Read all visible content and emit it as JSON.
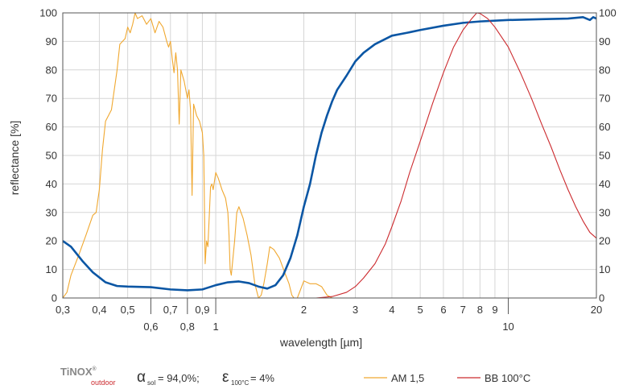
{
  "chart_data": {
    "type": "line",
    "title": "",
    "xlabel": "wavelength [µm]",
    "ylabel": "reflectance [%]",
    "x_scale": "log",
    "xlim": [
      0.3,
      20
    ],
    "ylim": [
      0,
      100
    ],
    "grid": true,
    "y_ticks": [
      "0",
      "10",
      "20",
      "30",
      "40",
      "50",
      "60",
      "70",
      "80",
      "90",
      "100"
    ],
    "x_ticks_major": [
      {
        "value": 0.3,
        "label": "0,3"
      },
      {
        "value": 0.4,
        "label": "0,4"
      },
      {
        "value": 0.5,
        "label": "0,5"
      },
      {
        "value": 0.7,
        "label": "0,7"
      },
      {
        "value": 0.9,
        "label": "0,9"
      },
      {
        "value": 2,
        "label": "2"
      },
      {
        "value": 3,
        "label": "3"
      },
      {
        "value": 4,
        "label": "4"
      },
      {
        "value": 5,
        "label": "5"
      },
      {
        "value": 6,
        "label": "6"
      },
      {
        "value": 7,
        "label": "7"
      },
      {
        "value": 8,
        "label": "8"
      },
      {
        "value": 9,
        "label": "9"
      },
      {
        "value": 20,
        "label": "20"
      }
    ],
    "x_ticks_lower": [
      {
        "value": 0.6,
        "label": "0,6"
      },
      {
        "value": 0.8,
        "label": "0,8"
      },
      {
        "value": 1,
        "label": "1"
      },
      {
        "value": 10,
        "label": "10"
      }
    ],
    "series": [
      {
        "name": "AM 1,5",
        "color": "#f0a830",
        "points": [
          [
            0.3,
            0
          ],
          [
            0.31,
            2
          ],
          [
            0.32,
            8
          ],
          [
            0.34,
            15
          ],
          [
            0.36,
            22
          ],
          [
            0.38,
            29
          ],
          [
            0.39,
            30
          ],
          [
            0.4,
            38
          ],
          [
            0.41,
            52
          ],
          [
            0.42,
            62
          ],
          [
            0.44,
            66
          ],
          [
            0.46,
            80
          ],
          [
            0.47,
            89
          ],
          [
            0.49,
            91
          ],
          [
            0.5,
            95
          ],
          [
            0.51,
            93
          ],
          [
            0.52,
            96
          ],
          [
            0.53,
            100
          ],
          [
            0.54,
            98
          ],
          [
            0.56,
            99
          ],
          [
            0.58,
            96
          ],
          [
            0.6,
            98
          ],
          [
            0.62,
            93
          ],
          [
            0.64,
            97
          ],
          [
            0.66,
            95
          ],
          [
            0.68,
            90
          ],
          [
            0.69,
            88
          ],
          [
            0.7,
            90
          ],
          [
            0.71,
            84
          ],
          [
            0.72,
            79
          ],
          [
            0.73,
            86
          ],
          [
            0.74,
            80
          ],
          [
            0.75,
            61
          ],
          [
            0.76,
            80
          ],
          [
            0.78,
            76
          ],
          [
            0.8,
            70
          ],
          [
            0.81,
            73
          ],
          [
            0.82,
            66
          ],
          [
            0.83,
            36
          ],
          [
            0.84,
            68
          ],
          [
            0.86,
            64
          ],
          [
            0.88,
            62
          ],
          [
            0.9,
            58
          ],
          [
            0.91,
            50
          ],
          [
            0.92,
            12
          ],
          [
            0.93,
            20
          ],
          [
            0.94,
            18
          ],
          [
            0.96,
            39
          ],
          [
            0.97,
            40
          ],
          [
            0.98,
            38
          ],
          [
            1.0,
            44
          ],
          [
            1.02,
            42
          ],
          [
            1.05,
            38
          ],
          [
            1.08,
            35
          ],
          [
            1.1,
            30
          ],
          [
            1.11,
            22
          ],
          [
            1.12,
            10
          ],
          [
            1.13,
            8
          ],
          [
            1.14,
            12
          ],
          [
            1.16,
            20
          ],
          [
            1.18,
            30
          ],
          [
            1.2,
            32
          ],
          [
            1.24,
            28
          ],
          [
            1.28,
            22
          ],
          [
            1.32,
            15
          ],
          [
            1.36,
            5
          ],
          [
            1.4,
            0
          ],
          [
            1.43,
            1
          ],
          [
            1.46,
            5
          ],
          [
            1.5,
            12
          ],
          [
            1.53,
            18
          ],
          [
            1.58,
            17
          ],
          [
            1.65,
            14
          ],
          [
            1.72,
            9
          ],
          [
            1.78,
            5
          ],
          [
            1.82,
            1
          ],
          [
            1.85,
            0
          ],
          [
            1.9,
            0
          ],
          [
            1.95,
            3
          ],
          [
            2.0,
            6
          ],
          [
            2.1,
            5
          ],
          [
            2.2,
            5
          ],
          [
            2.3,
            4
          ],
          [
            2.4,
            1
          ],
          [
            2.5,
            0
          ]
        ]
      },
      {
        "name": "",
        "color": "#0b56a4",
        "points": [
          [
            0.3,
            20
          ],
          [
            0.32,
            18
          ],
          [
            0.35,
            13
          ],
          [
            0.38,
            9
          ],
          [
            0.42,
            5.5
          ],
          [
            0.46,
            4.2
          ],
          [
            0.5,
            4
          ],
          [
            0.6,
            3.8
          ],
          [
            0.7,
            3
          ],
          [
            0.8,
            2.7
          ],
          [
            0.9,
            3
          ],
          [
            1.0,
            4.5
          ],
          [
            1.1,
            5.5
          ],
          [
            1.2,
            5.8
          ],
          [
            1.3,
            5.2
          ],
          [
            1.4,
            4
          ],
          [
            1.5,
            3.3
          ],
          [
            1.6,
            4.5
          ],
          [
            1.7,
            8
          ],
          [
            1.8,
            14
          ],
          [
            1.9,
            22
          ],
          [
            2.0,
            32
          ],
          [
            2.1,
            40
          ],
          [
            2.2,
            50
          ],
          [
            2.3,
            58
          ],
          [
            2.4,
            64
          ],
          [
            2.5,
            69
          ],
          [
            2.6,
            73
          ],
          [
            2.8,
            78
          ],
          [
            3.0,
            83
          ],
          [
            3.2,
            86
          ],
          [
            3.5,
            89
          ],
          [
            4.0,
            92
          ],
          [
            4.5,
            93
          ],
          [
            5.0,
            94
          ],
          [
            6.0,
            95.5
          ],
          [
            7.0,
            96.5
          ],
          [
            8.0,
            97
          ],
          [
            10.0,
            97.5
          ],
          [
            13.0,
            97.8
          ],
          [
            16.0,
            98
          ],
          [
            18.0,
            98.5
          ],
          [
            19.0,
            97.5
          ],
          [
            19.5,
            98.5
          ],
          [
            20.0,
            98
          ]
        ]
      },
      {
        "name": "BB 100°C",
        "color": "#cc2a2e",
        "points": [
          [
            2.0,
            0
          ],
          [
            2.2,
            0
          ],
          [
            2.5,
            0.5
          ],
          [
            2.8,
            2
          ],
          [
            3.0,
            4
          ],
          [
            3.2,
            7
          ],
          [
            3.5,
            12
          ],
          [
            3.8,
            19
          ],
          [
            4.0,
            25
          ],
          [
            4.3,
            34
          ],
          [
            4.6,
            44
          ],
          [
            5.0,
            55
          ],
          [
            5.5,
            68
          ],
          [
            6.0,
            79
          ],
          [
            6.5,
            88
          ],
          [
            7.0,
            94
          ],
          [
            7.5,
            98
          ],
          [
            7.8,
            100
          ],
          [
            8.0,
            99.8
          ],
          [
            8.5,
            98
          ],
          [
            9.0,
            95
          ],
          [
            10.0,
            88
          ],
          [
            11.0,
            79
          ],
          [
            12.0,
            70
          ],
          [
            13.0,
            61
          ],
          [
            14.0,
            53
          ],
          [
            15.0,
            45
          ],
          [
            16.0,
            38
          ],
          [
            17.0,
            32
          ],
          [
            18.0,
            27
          ],
          [
            19.0,
            23
          ],
          [
            20.0,
            21
          ]
        ]
      }
    ]
  },
  "legend": {
    "brand_main": "TiNOX",
    "brand_mark": "®",
    "brand_sub": "outdoor",
    "alpha_symbol": "α",
    "alpha_sub": "sol",
    "alpha_value": " = 94,0%;",
    "epsilon_symbol": "ε",
    "epsilon_sub": "100°C",
    "epsilon_value": " = 4%",
    "series_a_label": "AM 1,5",
    "series_b_label": "BB 100°C"
  },
  "colors": {
    "grid": "#d6d6d6",
    "axis": "#555555",
    "brand_red": "#cc2a2e",
    "brand_gray": "#888888"
  }
}
